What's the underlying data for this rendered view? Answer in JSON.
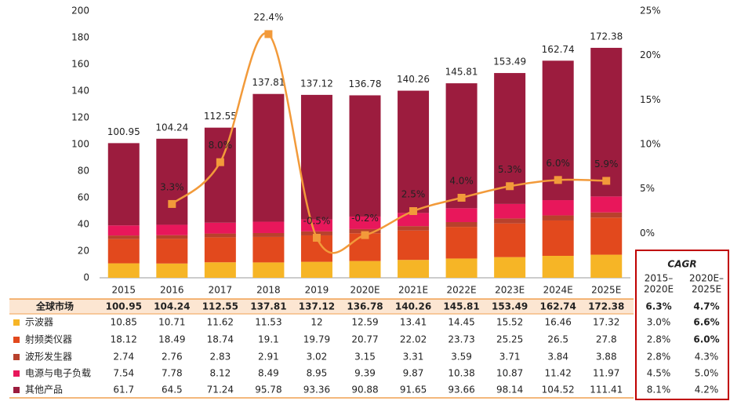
{
  "chart_data": {
    "type": "stacked-bar-line",
    "categories": [
      "2015",
      "2016",
      "2017",
      "2018",
      "2019",
      "2020E",
      "2021E",
      "2022E",
      "2023E",
      "2024E",
      "2025E"
    ],
    "series": [
      {
        "name": "示波器",
        "color": "#f6b526",
        "values": [
          10.85,
          10.71,
          11.62,
          11.53,
          12,
          12.59,
          13.41,
          14.45,
          15.52,
          16.46,
          17.32
        ]
      },
      {
        "name": "射频类仪器",
        "color": "#e2491d",
        "values": [
          18.12,
          18.49,
          18.74,
          19.1,
          19.79,
          20.77,
          22.02,
          23.73,
          25.25,
          26.5,
          27.8
        ]
      },
      {
        "name": "波形发生器",
        "color": "#b8412c",
        "values": [
          2.74,
          2.76,
          2.83,
          2.91,
          3.02,
          3.15,
          3.31,
          3.59,
          3.71,
          3.84,
          3.88
        ]
      },
      {
        "name": "电源与电子负载",
        "color": "#e8175b",
        "values": [
          7.54,
          7.78,
          8.12,
          8.49,
          8.95,
          9.39,
          9.87,
          10.38,
          10.87,
          11.42,
          11.97
        ]
      },
      {
        "name": "其他产品",
        "color": "#9c1c3e",
        "values": [
          61.7,
          64.5,
          71.24,
          95.78,
          93.36,
          90.88,
          91.65,
          93.66,
          98.14,
          104.52,
          111.41
        ]
      }
    ],
    "totals": {
      "name": "全球市场",
      "values": [
        100.95,
        104.24,
        112.55,
        137.81,
        137.12,
        136.78,
        140.26,
        145.81,
        153.49,
        162.74,
        172.38
      ]
    },
    "growth": {
      "axis": "y2",
      "color": "#f29a3a",
      "values": [
        null,
        3.3,
        8.0,
        22.4,
        -0.5,
        -0.2,
        2.5,
        4.0,
        5.3,
        6.0,
        5.9
      ],
      "value_labels": [
        null,
        "3.3%",
        "8.0%",
        "22.4%",
        "-0.5%",
        "-0.2%",
        "2.5%",
        "4.0%",
        "5.3%",
        "6.0%",
        "5.9%"
      ]
    },
    "ylim": [
      0,
      200
    ],
    "yticks": [
      0,
      20,
      40,
      60,
      80,
      100,
      120,
      140,
      160,
      180,
      200
    ],
    "y2lim": [
      -5,
      25
    ],
    "y2ticks": [
      {
        "value": 0,
        "label": "0%"
      },
      {
        "value": 5,
        "label": "5%"
      },
      {
        "value": 10,
        "label": "10%"
      },
      {
        "value": 15,
        "label": "15%"
      },
      {
        "value": 20,
        "label": "20%"
      },
      {
        "value": 25,
        "label": "25%"
      }
    ],
    "cagr": {
      "title": "CAGR",
      "headers": [
        [
          "2015–",
          "2020E"
        ],
        [
          "2020E–",
          "2025E"
        ]
      ],
      "totals": [
        "6.3%",
        "4.7%"
      ],
      "rows": [
        [
          "3.0%",
          "6.6%"
        ],
        [
          "2.8%",
          "6.0%"
        ],
        [
          "2.8%",
          "4.3%"
        ],
        [
          "4.5%",
          "5.0%"
        ],
        [
          "8.1%",
          "4.2%"
        ]
      ],
      "highlight": [
        [
          false,
          true
        ],
        [
          false,
          true
        ],
        [
          false,
          false
        ],
        [
          false,
          false
        ],
        [
          false,
          false
        ]
      ],
      "highlight_color": "#e00000"
    }
  }
}
